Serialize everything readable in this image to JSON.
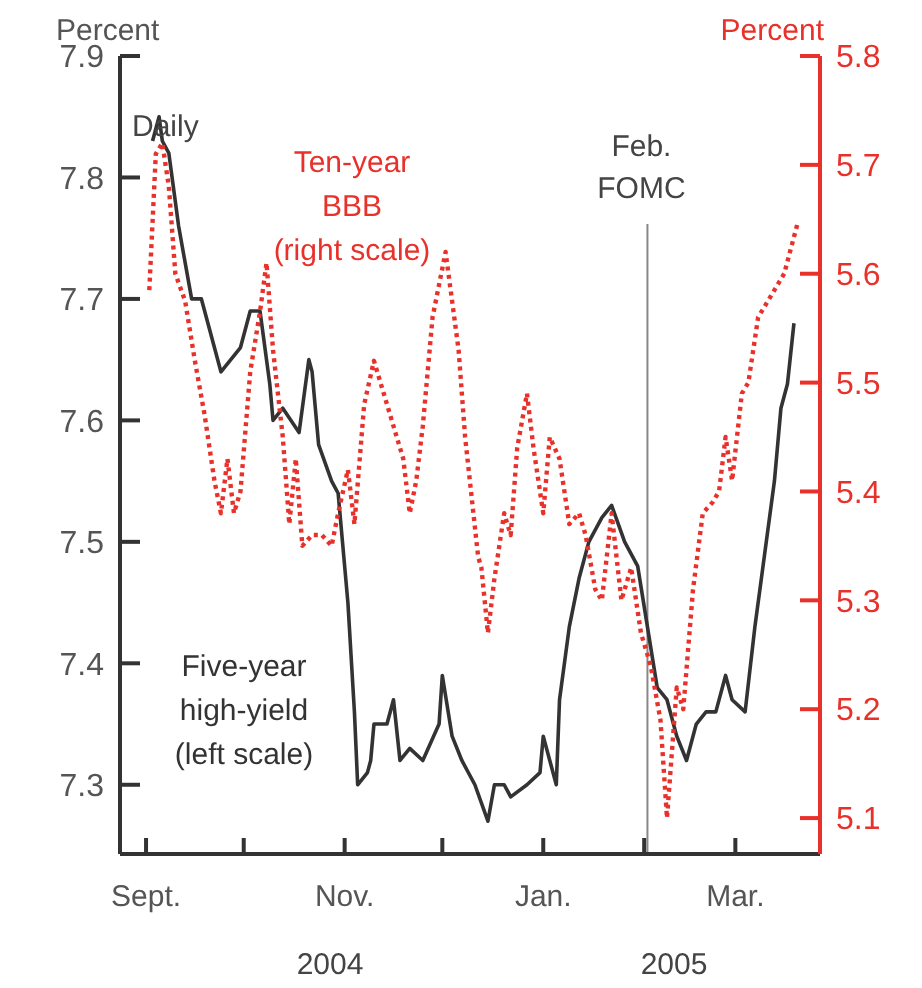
{
  "chart_data": {
    "type": "line",
    "ylabel": "Percent",
    "y2label": "Percent",
    "xlim": [
      "2004-08-24",
      "2005-03-27"
    ],
    "xticks": [
      {
        "value": "2004-09-01",
        "label": "Sept."
      },
      {
        "value": "2004-10-01",
        "label": null
      },
      {
        "value": "2004-11-01",
        "label": "Nov."
      },
      {
        "value": "2004-12-01",
        "label": null
      },
      {
        "value": "2005-01-01",
        "label": "Jan."
      },
      {
        "value": "2005-02-01",
        "label": null
      },
      {
        "value": "2005-03-01",
        "label": "Mar."
      }
    ],
    "ylim": [
      7.243,
      7.9
    ],
    "yticks": [
      7.3,
      7.4,
      7.5,
      7.6,
      7.7,
      7.8,
      7.9
    ],
    "y2lim": [
      5.067,
      5.8
    ],
    "y2ticks": [
      5.1,
      5.2,
      5.3,
      5.4,
      5.5,
      5.6,
      5.7,
      5.8
    ],
    "grid": false,
    "annotations": [
      "Daily",
      "2004",
      "2005"
    ],
    "ref_lines": [
      {
        "axis": "x",
        "value": "2005-02-02",
        "label": "Feb. FOMC",
        "color": "#888888"
      }
    ],
    "series": [
      {
        "name": "Five-year high-yield (left scale)",
        "color": "#333333",
        "line_style": "solid",
        "x": [
          "2004-09-03",
          "2004-09-05",
          "2004-09-06",
          "2004-09-08",
          "2004-09-11",
          "2004-09-15",
          "2004-09-18",
          "2004-09-24",
          "2004-09-30",
          "2004-10-03",
          "2004-10-06",
          "2004-10-09",
          "2004-10-10",
          "2004-10-13",
          "2004-10-18",
          "2004-10-21",
          "2004-10-22",
          "2004-10-24",
          "2004-10-28",
          "2004-10-30",
          "2004-11-02",
          "2004-11-04",
          "2004-11-05",
          "2004-11-08",
          "2004-11-09",
          "2004-11-10",
          "2004-11-14",
          "2004-11-16",
          "2004-11-18",
          "2004-11-21",
          "2004-11-25",
          "2004-11-30",
          "2004-12-01",
          "2004-12-04",
          "2004-12-07",
          "2004-12-11",
          "2004-12-15",
          "2004-12-17",
          "2004-12-20",
          "2004-12-22",
          "2004-12-27",
          "2004-12-31",
          "2005-01-01",
          "2005-01-03",
          "2005-01-05",
          "2005-01-06",
          "2005-01-09",
          "2005-01-12",
          "2005-01-15",
          "2005-01-19",
          "2005-01-22",
          "2005-01-26",
          "2005-01-30",
          "2005-02-02",
          "2005-02-05",
          "2005-02-08",
          "2005-02-11",
          "2005-02-14",
          "2005-02-17",
          "2005-02-20",
          "2005-02-23",
          "2005-02-26",
          "2005-02-28",
          "2005-03-04",
          "2005-03-07",
          "2005-03-10",
          "2005-03-13",
          "2005-03-15",
          "2005-03-17",
          "2005-03-19"
        ],
        "values": [
          7.83,
          7.85,
          7.83,
          7.82,
          7.76,
          7.7,
          7.7,
          7.64,
          7.66,
          7.69,
          7.69,
          7.63,
          7.6,
          7.61,
          7.59,
          7.65,
          7.64,
          7.58,
          7.55,
          7.54,
          7.45,
          7.36,
          7.3,
          7.31,
          7.32,
          7.35,
          7.35,
          7.37,
          7.32,
          7.33,
          7.32,
          7.35,
          7.39,
          7.34,
          7.32,
          7.3,
          7.27,
          7.3,
          7.3,
          7.29,
          7.3,
          7.31,
          7.34,
          7.32,
          7.3,
          7.37,
          7.43,
          7.47,
          7.5,
          7.52,
          7.53,
          7.5,
          7.48,
          7.43,
          7.38,
          7.37,
          7.34,
          7.32,
          7.35,
          7.36,
          7.36,
          7.39,
          7.37,
          7.36,
          7.43,
          7.49,
          7.55,
          7.61,
          7.63,
          7.68
        ]
      },
      {
        "name": "Ten-year BBB (right scale)",
        "color": "#e8312a",
        "line_style": "dotted",
        "axis": "y2",
        "x": [
          "2004-09-02",
          "2004-09-04",
          "2004-09-06",
          "2004-09-08",
          "2004-09-10",
          "2004-09-13",
          "2004-09-16",
          "2004-09-19",
          "2004-09-22",
          "2004-09-24",
          "2004-09-26",
          "2004-09-28",
          "2004-09-30",
          "2004-10-03",
          "2004-10-06",
          "2004-10-08",
          "2004-10-10",
          "2004-10-13",
          "2004-10-15",
          "2004-10-17",
          "2004-10-19",
          "2004-10-22",
          "2004-10-25",
          "2004-10-28",
          "2004-10-30",
          "2004-11-02",
          "2004-11-04",
          "2004-11-07",
          "2004-11-10",
          "2004-11-13",
          "2004-11-16",
          "2004-11-19",
          "2004-11-21",
          "2004-11-23",
          "2004-11-25",
          "2004-11-28",
          "2004-12-02",
          "2004-12-06",
          "2004-12-08",
          "2004-12-12",
          "2004-12-13",
          "2004-12-15",
          "2004-12-17",
          "2004-12-20",
          "2004-12-22",
          "2004-12-24",
          "2004-12-27",
          "2004-12-29",
          "2005-01-01",
          "2005-01-03",
          "2005-01-06",
          "2005-01-09",
          "2005-01-12",
          "2005-01-14",
          "2005-01-17",
          "2005-01-19",
          "2005-01-22",
          "2005-01-25",
          "2005-01-28",
          "2005-01-31",
          "2005-02-03",
          "2005-02-06",
          "2005-02-08",
          "2005-02-11",
          "2005-02-13",
          "2005-02-16",
          "2005-02-19",
          "2005-02-22",
          "2005-02-24",
          "2005-02-26",
          "2005-02-28",
          "2005-03-03",
          "2005-03-05",
          "2005-03-08",
          "2005-03-11",
          "2005-03-14",
          "2005-03-16",
          "2005-03-20"
        ],
        "values": [
          5.585,
          5.71,
          5.72,
          5.68,
          5.6,
          5.575,
          5.52,
          5.47,
          5.41,
          5.38,
          5.43,
          5.38,
          5.4,
          5.51,
          5.565,
          5.61,
          5.53,
          5.45,
          5.37,
          5.43,
          5.35,
          5.36,
          5.36,
          5.35,
          5.38,
          5.42,
          5.37,
          5.48,
          5.52,
          5.49,
          5.46,
          5.43,
          5.38,
          5.41,
          5.46,
          5.56,
          5.62,
          5.53,
          5.45,
          5.34,
          5.33,
          5.27,
          5.32,
          5.38,
          5.36,
          5.44,
          5.49,
          5.44,
          5.38,
          5.45,
          5.43,
          5.37,
          5.38,
          5.36,
          5.31,
          5.3,
          5.38,
          5.3,
          5.33,
          5.27,
          5.24,
          5.19,
          5.1,
          5.22,
          5.2,
          5.31,
          5.38,
          5.39,
          5.4,
          5.45,
          5.41,
          5.49,
          5.5,
          5.56,
          5.575,
          5.59,
          5.6,
          5.645
        ]
      }
    ]
  }
}
